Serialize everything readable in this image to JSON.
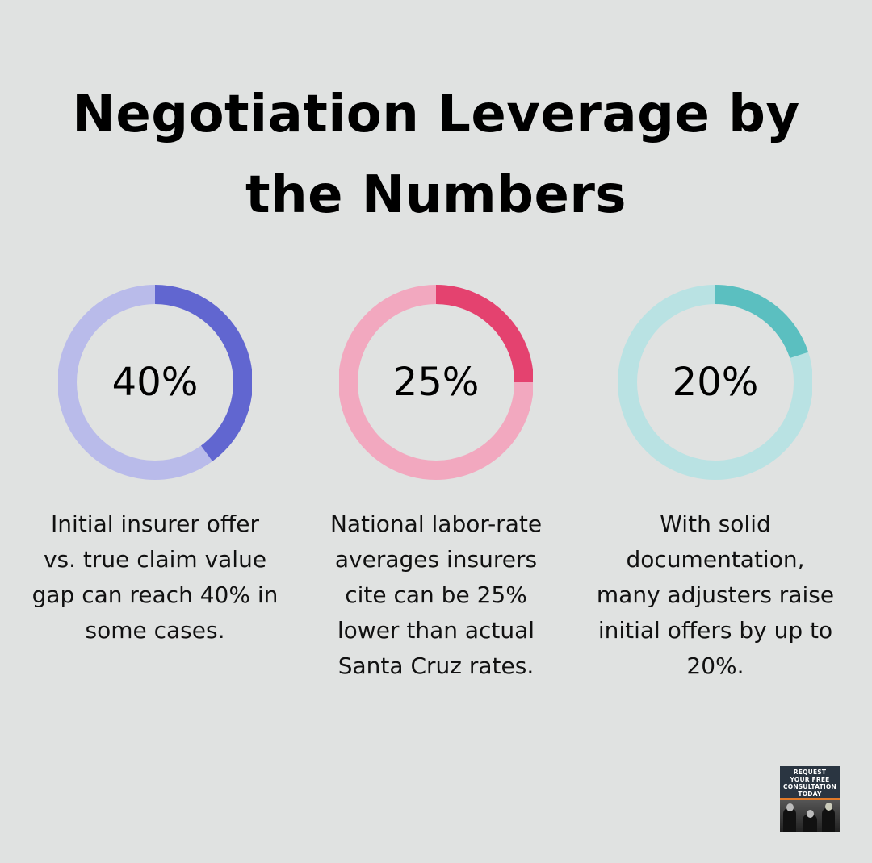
{
  "title": [
    "Negotiation Leverage by",
    "the Numbers"
  ],
  "chart_data": [
    {
      "type": "pie",
      "variant": "donut",
      "value": 40,
      "label": "40%",
      "description": [
        "Initial insurer offer",
        "vs. true claim value",
        "gap can reach 40% in",
        "some cases."
      ],
      "colors": {
        "fill": "#6166d0",
        "track": "#b9bbea"
      }
    },
    {
      "type": "pie",
      "variant": "donut",
      "value": 25,
      "label": "25%",
      "description": [
        "National labor-rate",
        "averages insurers",
        "cite can be 25%",
        "lower than actual",
        "Santa Cruz rates."
      ],
      "colors": {
        "fill": "#e4426f",
        "track": "#f2a8bf"
      }
    },
    {
      "type": "pie",
      "variant": "donut",
      "value": 20,
      "label": "20%",
      "description": [
        "With solid",
        "documentation,",
        "many adjusters raise",
        "initial offers by up to",
        "20%."
      ],
      "colors": {
        "fill": "#5bbfc0",
        "track": "#b9e2e3"
      }
    }
  ],
  "badge": {
    "text": [
      "REQUEST",
      "YOUR FREE",
      "CONSULTATION",
      "TODAY"
    ]
  }
}
